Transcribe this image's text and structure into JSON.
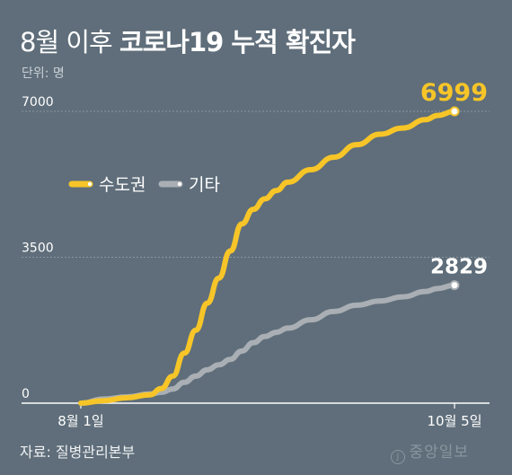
{
  "title": {
    "light": "8월 이후",
    "bold": "코로나19 누적 확진자"
  },
  "unit": "단위: 명",
  "source": "자료: 질병관리본부",
  "brand": "중앙일보",
  "colors": {
    "background": "#5f6e7a",
    "capital": "#f7c528",
    "other": "#a9afb4",
    "grid": "#8a969f",
    "axis": "#ffffff"
  },
  "chart_data": {
    "type": "line",
    "x_tick_labels": [
      "8월 1일",
      "10월 5일"
    ],
    "y_tick_labels": [
      "0",
      "3500",
      "7000"
    ],
    "ylim": [
      0,
      7000
    ],
    "legend_placement": "top-left",
    "end_labels": [
      "6999",
      "2829"
    ],
    "series": [
      {
        "name": "수도권",
        "color": "#f7c528",
        "x": [
          "8/1",
          "8/5",
          "8/9",
          "8/13",
          "8/15",
          "8/17",
          "8/19",
          "8/21",
          "8/23",
          "8/25",
          "8/27",
          "8/29",
          "8/31",
          "9/2",
          "9/4",
          "9/6",
          "9/10",
          "9/14",
          "9/18",
          "9/22",
          "9/26",
          "9/30",
          "10/2",
          "10/5"
        ],
        "values": [
          0,
          60,
          130,
          200,
          350,
          650,
          1200,
          1750,
          2400,
          3000,
          3650,
          4300,
          4650,
          4900,
          5100,
          5300,
          5600,
          5900,
          6200,
          6450,
          6600,
          6800,
          6900,
          6999
        ]
      },
      {
        "name": "기타",
        "color": "#a9afb4",
        "x": [
          "8/1",
          "8/5",
          "8/9",
          "8/13",
          "8/15",
          "8/17",
          "8/19",
          "8/21",
          "8/23",
          "8/25",
          "8/27",
          "8/29",
          "8/31",
          "9/2",
          "9/4",
          "9/6",
          "9/10",
          "9/14",
          "9/18",
          "9/22",
          "9/26",
          "9/30",
          "10/2",
          "10/5"
        ],
        "values": [
          0,
          100,
          150,
          220,
          260,
          340,
          500,
          650,
          800,
          920,
          1050,
          1250,
          1450,
          1600,
          1700,
          1800,
          2000,
          2200,
          2350,
          2450,
          2550,
          2680,
          2750,
          2829
        ]
      }
    ]
  }
}
